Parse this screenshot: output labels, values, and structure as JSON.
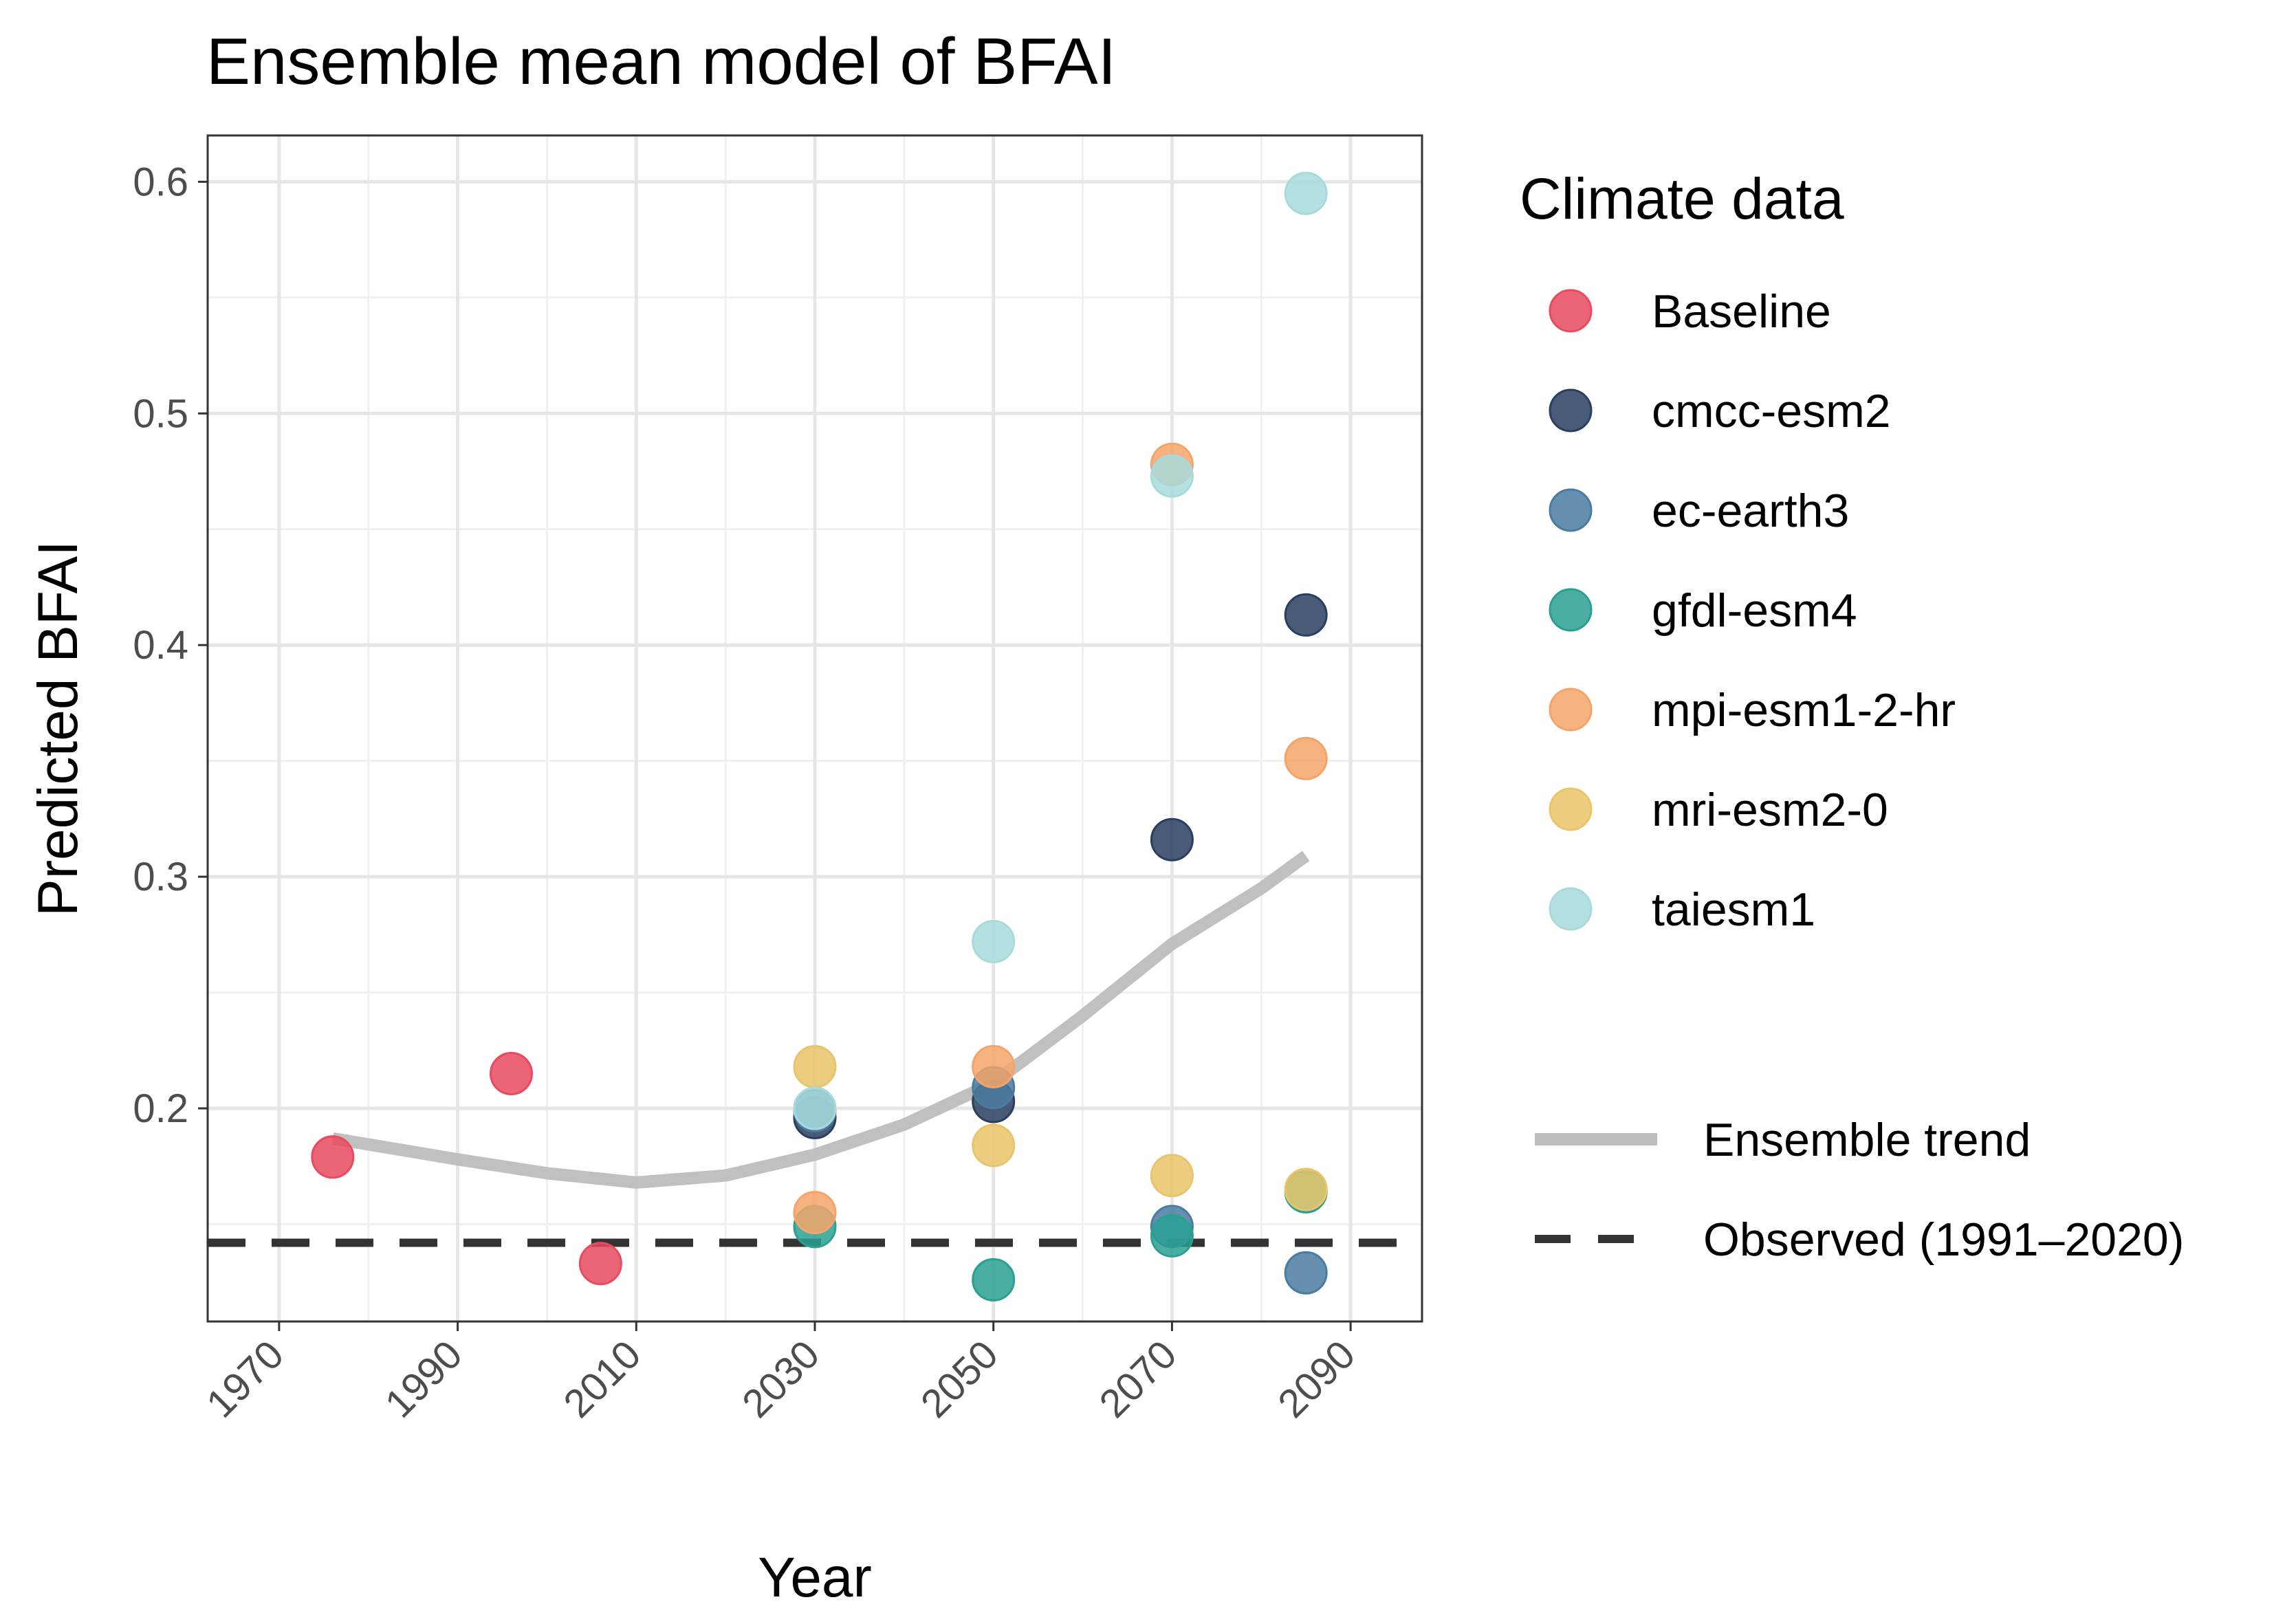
{
  "chart_data": {
    "type": "scatter",
    "title": "Ensemble mean model of BFAI",
    "xlabel": "Year",
    "ylabel": "Predicted BFAI",
    "xlim": [
      1962,
      2098
    ],
    "ylim": [
      0.108,
      0.62
    ],
    "x_ticks": [
      1970,
      1990,
      2010,
      2030,
      2050,
      2070,
      2090
    ],
    "y_ticks": [
      0.2,
      0.3,
      0.4,
      0.5,
      0.6
    ],
    "grid": true,
    "legend_title": "Climate data",
    "legend_position": "right",
    "series": [
      {
        "name": "Baseline",
        "color": "#E84A5F",
        "points": [
          [
            1976,
            0.179
          ],
          [
            1996,
            0.215
          ],
          [
            2006,
            0.133
          ]
        ]
      },
      {
        "name": "cmcc-esm2",
        "color": "#2A3E5F",
        "points": [
          [
            2030,
            0.196
          ],
          [
            2050,
            0.203
          ],
          [
            2070,
            0.316
          ],
          [
            2085,
            0.413
          ]
        ]
      },
      {
        "name": "ec-earth3",
        "color": "#4A7BA0",
        "points": [
          [
            2030,
            0.199
          ],
          [
            2050,
            0.209
          ],
          [
            2070,
            0.149
          ],
          [
            2085,
            0.129
          ]
        ]
      },
      {
        "name": "gfdl-esm4",
        "color": "#2AA093",
        "points": [
          [
            2030,
            0.149
          ],
          [
            2050,
            0.126
          ],
          [
            2070,
            0.145
          ],
          [
            2085,
            0.164
          ]
        ]
      },
      {
        "name": "mpi-esm1-2-hr",
        "color": "#F5A469",
        "points": [
          [
            2030,
            0.155
          ],
          [
            2050,
            0.218
          ],
          [
            2070,
            0.478
          ],
          [
            2085,
            0.351
          ]
        ]
      },
      {
        "name": "mri-esm2-0",
        "color": "#E9C46A",
        "points": [
          [
            2030,
            0.218
          ],
          [
            2050,
            0.184
          ],
          [
            2070,
            0.171
          ],
          [
            2085,
            0.165
          ]
        ]
      },
      {
        "name": "taiesm1",
        "color": "#A8DADC",
        "points": [
          [
            2030,
            0.2
          ],
          [
            2050,
            0.272
          ],
          [
            2070,
            0.473
          ],
          [
            2085,
            0.595
          ]
        ]
      }
    ],
    "lines": [
      {
        "name": "Ensemble trend",
        "style": "solid",
        "color": "#bdbdbd",
        "points": [
          [
            1976,
            0.187
          ],
          [
            1990,
            0.178
          ],
          [
            2000,
            0.172
          ],
          [
            2010,
            0.168
          ],
          [
            2020,
            0.171
          ],
          [
            2030,
            0.18
          ],
          [
            2040,
            0.193
          ],
          [
            2050,
            0.211
          ],
          [
            2060,
            0.24
          ],
          [
            2070,
            0.271
          ],
          [
            2080,
            0.295
          ],
          [
            2085,
            0.309
          ]
        ]
      },
      {
        "name": "Observed (1991–2020)",
        "style": "dashed",
        "color": "#333333",
        "y": 0.142
      }
    ]
  }
}
